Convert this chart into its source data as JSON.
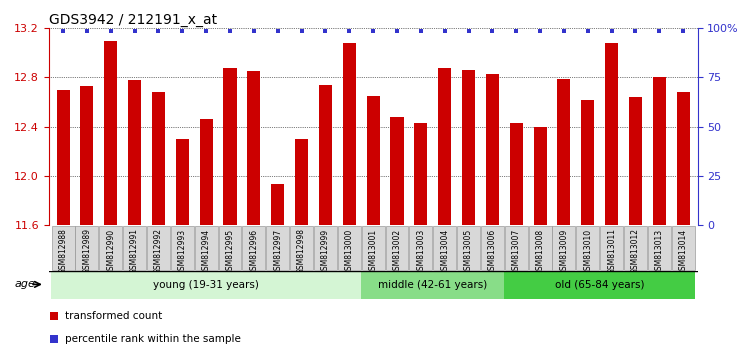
{
  "title": "GDS3942 / 212191_x_at",
  "samples": [
    "GSM812988",
    "GSM812989",
    "GSM812990",
    "GSM812991",
    "GSM812992",
    "GSM812993",
    "GSM812994",
    "GSM812995",
    "GSM812996",
    "GSM812997",
    "GSM812998",
    "GSM812999",
    "GSM813000",
    "GSM813001",
    "GSM813002",
    "GSM813003",
    "GSM813004",
    "GSM813005",
    "GSM813006",
    "GSM813007",
    "GSM813008",
    "GSM813009",
    "GSM813010",
    "GSM813011",
    "GSM813012",
    "GSM813013",
    "GSM813014"
  ],
  "bar_values": [
    12.7,
    12.73,
    13.1,
    12.78,
    12.68,
    12.3,
    12.46,
    12.88,
    12.85,
    11.93,
    12.3,
    12.74,
    13.08,
    12.65,
    12.48,
    12.43,
    12.88,
    12.86,
    12.83,
    12.43,
    12.4,
    12.79,
    12.62,
    13.08,
    12.64,
    12.8,
    12.68
  ],
  "bar_color": "#cc0000",
  "percentile_color": "#3333cc",
  "ylim_left": [
    11.6,
    13.2
  ],
  "ylim_right": [
    0,
    100
  ],
  "yticks_left": [
    11.6,
    12.0,
    12.4,
    12.8,
    13.2
  ],
  "yticks_right": [
    0,
    25,
    50,
    75,
    100
  ],
  "ytick_labels_right": [
    "0",
    "25",
    "50",
    "75",
    "100%"
  ],
  "groups": [
    {
      "label": "young (19-31 years)",
      "start": 0,
      "end": 13,
      "color": "#d4f5d4"
    },
    {
      "label": "middle (42-61 years)",
      "start": 13,
      "end": 19,
      "color": "#88dd88"
    },
    {
      "label": "old (65-84 years)",
      "start": 19,
      "end": 27,
      "color": "#44cc44"
    }
  ],
  "age_label": "age",
  "legend_bar_label": "transformed count",
  "legend_pct_label": "percentile rank within the sample",
  "background_color": "#ffffff",
  "label_bg": "#d8d8d8",
  "title_fontsize": 10,
  "tick_fontsize": 8,
  "label_fontsize": 5.5,
  "group_fontsize": 7.5,
  "legend_fontsize": 7.5
}
